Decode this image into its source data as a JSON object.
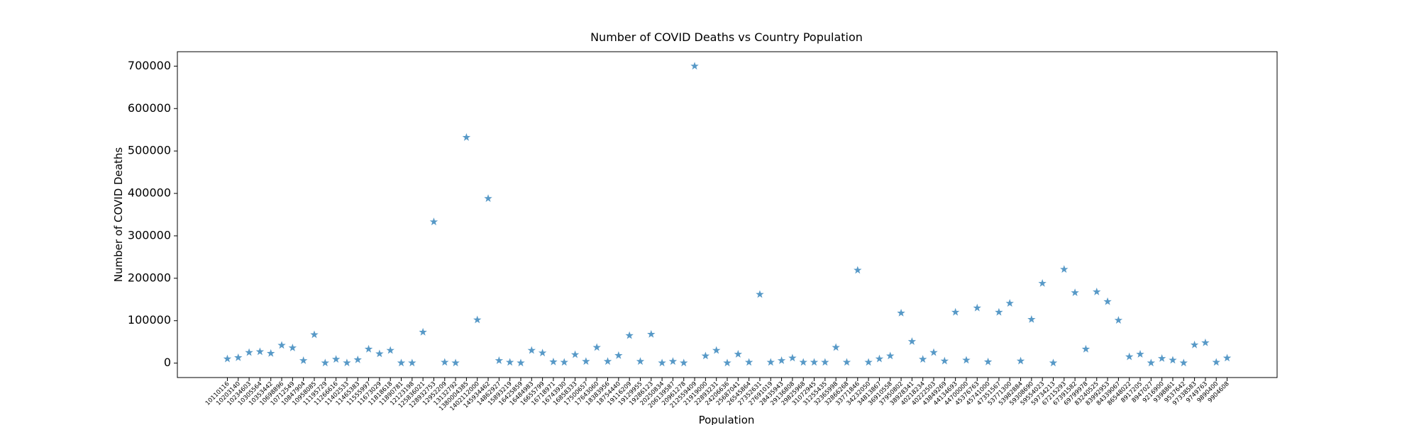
{
  "chart_data": {
    "type": "scatter",
    "title": "Number of COVID Deaths vs Country Population",
    "x_label": "Population",
    "y_label": "Number of COVID Deaths",
    "marker": "star",
    "color": "#1f77b4",
    "grid": false,
    "ylim": [
      -34000,
      734000
    ],
    "yticks": [
      0,
      100000,
      200000,
      300000,
      400000,
      500000,
      600000,
      700000
    ],
    "categories": [
      "10110116",
      "10203140",
      "10234603",
      "10305564",
      "10353442",
      "10698896",
      "10712549",
      "10847904",
      "10958085",
      "11195729",
      "11266616",
      "11402533",
      "11465383",
      "11555997",
      "11673029",
      "11818618",
      "11890781",
      "12123198",
      "125836021",
      "128932753",
      "12952209",
      "13132792",
      "1380004385",
      "1402112000",
      "145934462",
      "14862927",
      "15893219",
      "16425859",
      "16484983",
      "16655799",
      "16718971",
      "16743930",
      "16858333",
      "17500657",
      "17643060",
      "18383956",
      "18754440",
      "19116209",
      "19129955",
      "19286123",
      "20250834",
      "206139587",
      "20961278",
      "212559409",
      "21919000",
      "22893231",
      "24206636",
      "25687041",
      "26545864",
      "27352631",
      "27691019",
      "28435943",
      "29136808",
      "29825968",
      "31072945",
      "31255435",
      "32365998",
      "32866268",
      "33771846",
      "34232050",
      "34813867",
      "36910558",
      "37950802",
      "38928341",
      "40218234",
      "40222503",
      "43849269",
      "44134693",
      "44700000",
      "45376763",
      "45741000",
      "47351567",
      "53771300",
      "53982884",
      "59308690",
      "59554023",
      "59734213",
      "67215293",
      "67391582",
      "69799978",
      "83240525",
      "83992953",
      "84339067",
      "86548022",
      "8917205",
      "8947027",
      "9216900",
      "9398861",
      "9537642",
      "97338583",
      "9749763",
      "9890400",
      "9904608"
    ],
    "values": [
      10000,
      13000,
      25000,
      27000,
      23000,
      42000,
      36000,
      6000,
      67000,
      500,
      9000,
      600,
      8000,
      33000,
      22000,
      30000,
      500,
      500,
      73000,
      333000,
      2000,
      500,
      532000,
      102000,
      388000,
      6000,
      2000,
      500,
      30000,
      24000,
      3000,
      2000,
      20000,
      4000,
      37000,
      4000,
      18000,
      65000,
      4000,
      68000,
      500,
      4000,
      500,
      700000,
      17000,
      30000,
      500,
      21000,
      2000,
      162000,
      2000,
      6000,
      12000,
      2000,
      2000,
      2000,
      37000,
      2000,
      219000,
      2000,
      10000,
      17000,
      118000,
      51000,
      9000,
      25000,
      5000,
      120000,
      7000,
      130000,
      3000,
      120000,
      141000,
      5000,
      103000,
      188000,
      500,
      221000,
      166000,
      33000,
      168000,
      145000,
      101000,
      15000,
      21000,
      500,
      11000,
      7000,
      500,
      43000,
      48000,
      2000,
      12000
    ]
  }
}
